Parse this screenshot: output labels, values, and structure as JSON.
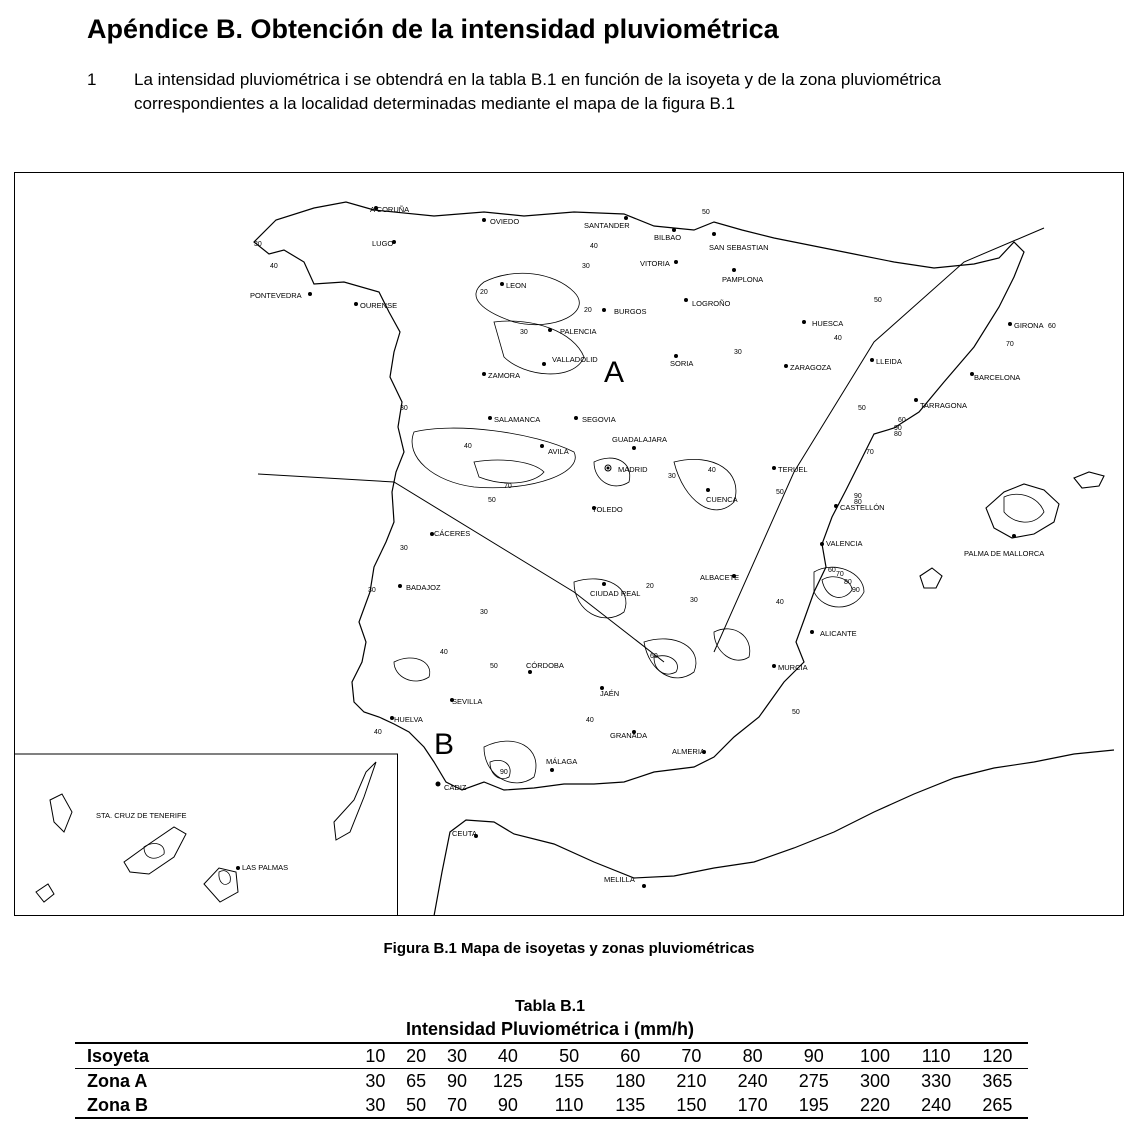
{
  "heading": "Apéndice B. Obtención de la intensidad pluviométrica",
  "paragraph": {
    "number": "1",
    "text": "La intensidad pluviométrica i se obtendrá en la tabla B.1 en función de la isoyeta y de la zona pluviométrica correspondientes a la localidad determinadas mediante el mapa de la figura B.1"
  },
  "map": {
    "zone_labels": [
      "A",
      "B"
    ],
    "cities": [
      "A CORUÑA",
      "OVIEDO",
      "SANTANDER",
      "BILBAO",
      "SAN SEBASTIAN",
      "LUGO",
      "VITORIA",
      "PAMPLONA",
      "LEON",
      "PONTEVEDRA",
      "OURENSE",
      "LOGROÑO",
      "BURGOS",
      "HUESCA",
      "GIRONA",
      "PALENCIA",
      "VALLADOLID",
      "SORIA",
      "ZARAGOZA",
      "LLEIDA",
      "ZAMORA",
      "BARCELONA",
      "TARRAGONA",
      "SALAMANCA",
      "SEGOVIA",
      "GUADALAJARA",
      "AVILA",
      "MADRID",
      "TERUEL",
      "CUENCA",
      "TOLEDO",
      "CASTELLÓN",
      "CÁCERES",
      "VALENCIA",
      "PALMA DE MALLORCA",
      "BADAJOZ",
      "ALBACETE",
      "CIUDAD REAL",
      "ALICANTE",
      "CÓRDOBA",
      "MURCIA",
      "JAÉN",
      "SEVILLA",
      "HUELVA",
      "GRANADA",
      "ALMERIA",
      "MÁLAGA",
      "CADIZ",
      "CEUTA",
      "MELILLA",
      "STA. CRUZ DE TENERIFE",
      "LAS PALMAS"
    ],
    "isoyeta_values": [
      "20",
      "30",
      "40",
      "50",
      "60",
      "70",
      "80",
      "90"
    ]
  },
  "figure_caption": "Figura B.1  Mapa de isoyetas y zonas pluviométricas",
  "table": {
    "title": "Tabla B.1",
    "subtitle": "Intensidad Pluviométrica i (mm/h)",
    "rows": [
      {
        "label": "Isoyeta",
        "values": [
          "10",
          "20",
          "30",
          "40",
          "50",
          "60",
          "70",
          "80",
          "90",
          "100",
          "110",
          "120"
        ]
      },
      {
        "label": "Zona A",
        "values": [
          "30",
          "65",
          "90",
          "125",
          "155",
          "180",
          "210",
          "240",
          "275",
          "300",
          "330",
          "365"
        ]
      },
      {
        "label": "Zona B",
        "values": [
          "30",
          "50",
          "70",
          "90",
          "110",
          "135",
          "150",
          "170",
          "195",
          "220",
          "240",
          "265"
        ]
      }
    ]
  }
}
